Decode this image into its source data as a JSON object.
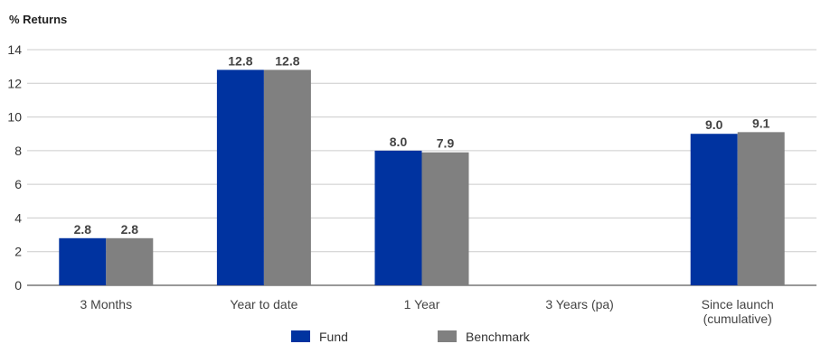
{
  "chart_data": {
    "type": "bar",
    "ylabel": "% Returns",
    "xlabel": "",
    "ylim": [
      0,
      14
    ],
    "yticks": [
      0,
      2,
      4,
      6,
      8,
      10,
      12,
      14
    ],
    "grid": true,
    "legend_position": "bottom",
    "categories": [
      [
        "3 Months"
      ],
      [
        "Year to date"
      ],
      [
        "1 Year"
      ],
      [
        "3 Years (pa)"
      ],
      [
        "Since launch",
        "(cumulative)"
      ]
    ],
    "series": [
      {
        "name": "Fund",
        "color": "#0033a0",
        "values": [
          2.8,
          12.8,
          8.0,
          null,
          9.0
        ],
        "labels": [
          "2.8",
          "12.8",
          "8.0",
          null,
          "9.0"
        ]
      },
      {
        "name": "Benchmark",
        "color": "#808080",
        "values": [
          2.8,
          12.8,
          7.9,
          null,
          9.1
        ],
        "labels": [
          "2.8",
          "12.8",
          "7.9",
          null,
          "9.1"
        ]
      }
    ]
  }
}
